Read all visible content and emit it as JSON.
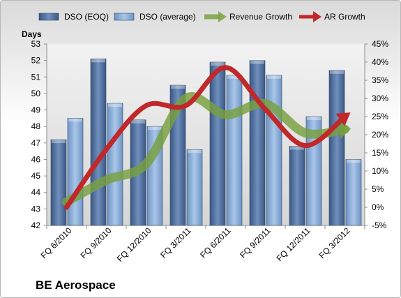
{
  "chart_data": {
    "type": "bar",
    "title": "BE Aerospace",
    "ylabel": "Days",
    "categories": [
      "FQ 6/2010",
      "FQ 9/2010",
      "FQ 12/2010",
      "FQ 3/2011",
      "FQ 6/2011",
      "FQ 9/2011",
      "FQ 12/2011",
      "FQ 3/2012"
    ],
    "ylim": [
      42,
      53
    ],
    "y_ticks": [
      "42",
      "43",
      "44",
      "45",
      "46",
      "47",
      "48",
      "49",
      "50",
      "51",
      "52",
      "53"
    ],
    "y2lim": [
      -5,
      45
    ],
    "y2_ticks": [
      "-5%",
      "0%",
      "5%",
      "10%",
      "15%",
      "20%",
      "25%",
      "30%",
      "35%",
      "40%",
      "45%"
    ],
    "grid": false,
    "legend_position": "top",
    "series": [
      {
        "name": "DSO (EOQ)",
        "kind": "bar",
        "axis": "left",
        "color": "#4a6896",
        "values": [
          47.2,
          52.1,
          48.4,
          50.5,
          51.9,
          52.0,
          46.8,
          51.4
        ]
      },
      {
        "name": "DSO (average)",
        "kind": "bar",
        "axis": "left",
        "color": "#7fa4d2",
        "values": [
          48.5,
          49.4,
          48.0,
          46.6,
          51.1,
          51.1,
          48.6,
          46.0
        ]
      },
      {
        "name": "Revenue Growth",
        "kind": "line",
        "axis": "right",
        "color": "#77a03e",
        "values": [
          1.5,
          7.5,
          12.0,
          30.0,
          25.5,
          28.5,
          20.5,
          21.5
        ]
      },
      {
        "name": "AR Growth",
        "kind": "line",
        "axis": "right",
        "color": "#c0282a",
        "values": [
          0.0,
          16.0,
          28.0,
          28.0,
          38.5,
          27.0,
          17.0,
          25.0
        ]
      }
    ]
  }
}
